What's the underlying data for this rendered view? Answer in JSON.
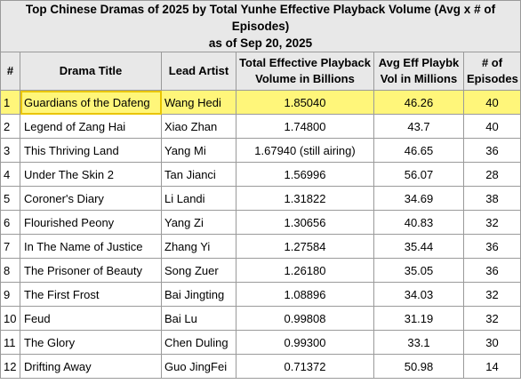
{
  "title_line1": "Top Chinese Dramas of 2025 by Total Yunhe Effective Playback Volume (Avg x # of Episodes)",
  "title_line2": "as of Sep 20, 2025",
  "headers": {
    "num": "#",
    "title": "Drama Title",
    "artist": "Lead Artist",
    "total": "Total Effective Playback Volume in Billions",
    "avg": "Avg Eff Playbk Vol in Millions",
    "eps": "# of Episodes"
  },
  "rows": [
    {
      "num": "1",
      "title": "Guardians of the Dafeng",
      "artist": "Wang Hedi",
      "total": "1.85040",
      "avg": "46.26",
      "eps": "40"
    },
    {
      "num": "2",
      "title": "Legend of Zang Hai",
      "artist": "Xiao Zhan",
      "total": "1.74800",
      "avg": "43.7",
      "eps": "40"
    },
    {
      "num": "3",
      "title": "This Thriving Land",
      "artist": "Yang Mi",
      "total": "1.67940 (still airing)",
      "avg": "46.65",
      "eps": "36"
    },
    {
      "num": "4",
      "title": "Under The Skin 2",
      "artist": "Tan Jianci",
      "total": "1.56996",
      "avg": "56.07",
      "eps": "28"
    },
    {
      "num": "5",
      "title": "Coroner's Diary",
      "artist": "Li Landi",
      "total": "1.31822",
      "avg": "34.69",
      "eps": "38"
    },
    {
      "num": "6",
      "title": "Flourished Peony",
      "artist": "Yang Zi",
      "total": "1.30656",
      "avg": "40.83",
      "eps": "32"
    },
    {
      "num": "7",
      "title": "In The Name of Justice",
      "artist": "Zhang Yi",
      "total": "1.27584",
      "avg": "35.44",
      "eps": "36"
    },
    {
      "num": "8",
      "title": "The Prisoner of Beauty",
      "artist": "Song Zuer",
      "total": "1.26180",
      "avg": "35.05",
      "eps": "36"
    },
    {
      "num": "9",
      "title": "The First Frost",
      "artist": "Bai Jingting",
      "total": "1.08896",
      "avg": "34.03",
      "eps": "32"
    },
    {
      "num": "10",
      "title": "Feud",
      "artist": "Bai Lu",
      "total": "0.99808",
      "avg": "31.19",
      "eps": "32"
    },
    {
      "num": "11",
      "title": "The Glory",
      "artist": "Chen Duling",
      "total": "0.99300",
      "avg": "33.1",
      "eps": "30"
    },
    {
      "num": "12",
      "title": "Drifting Away",
      "artist": "Guo JingFei",
      "total": "0.71372",
      "avg": "50.98",
      "eps": "14"
    }
  ],
  "highlight_color": "#fff67a"
}
